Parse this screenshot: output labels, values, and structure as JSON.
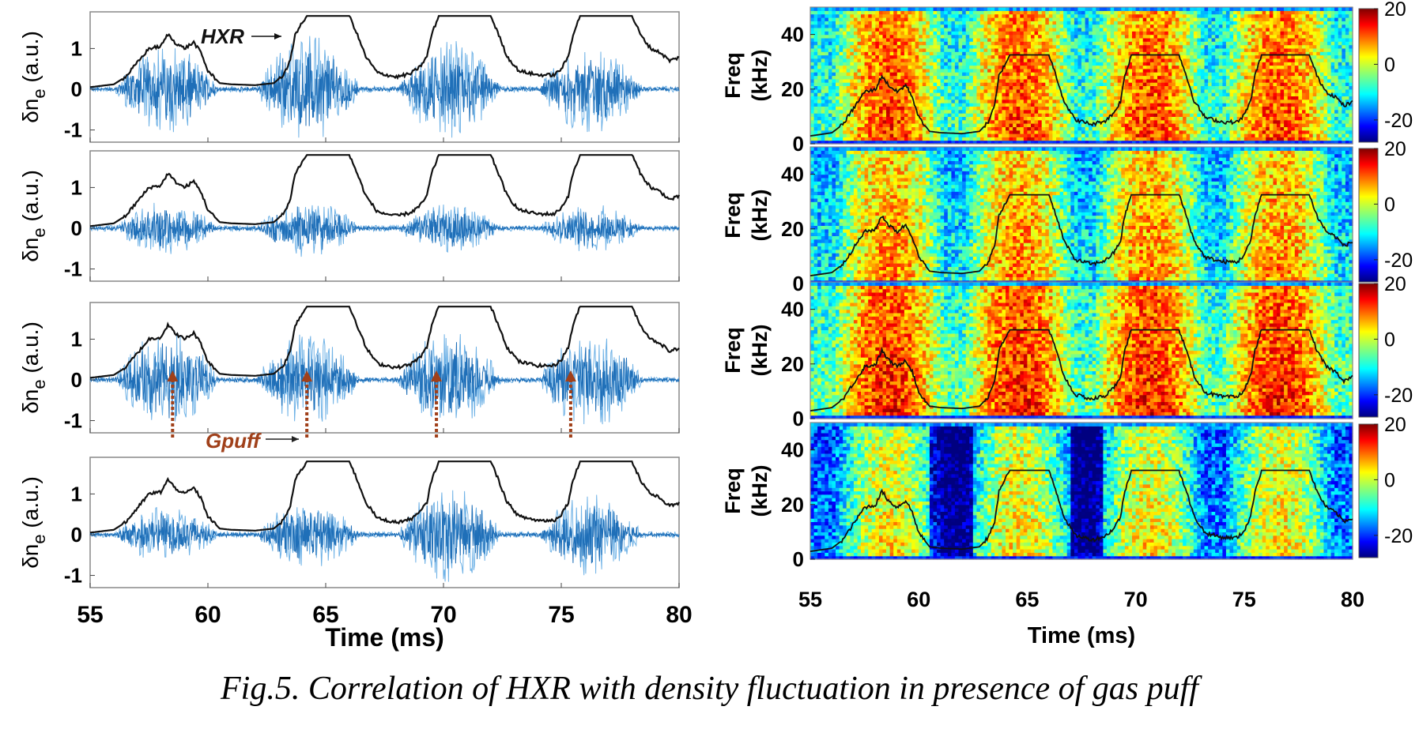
{
  "caption": "Fig.5. Correlation of HXR with density fluctuation in presence of gas puff",
  "colors": {
    "hxr": "#111111",
    "fluct_dark": "#1f6fb8",
    "fluct_light": "#6fb2e6",
    "gpuff_arrow": "#a0401a",
    "frame": "#888888"
  },
  "chart_data": [
    {
      "type": "line",
      "side": "left",
      "panels": 4,
      "ylabel": "δn_e (a.u.)",
      "ylabel_main": "δn",
      "ylabel_sub": "e",
      "ylabel_unit": " (a.u.)",
      "xlabel": "Time (ms)",
      "xlim": [
        55,
        80
      ],
      "ylim": [
        -1.3,
        1.9
      ],
      "xticks": [
        55,
        60,
        65,
        70,
        75,
        80
      ],
      "xtick_labels": [
        "55",
        "60",
        "65",
        "70",
        "75",
        "80"
      ],
      "yticks": [
        -1,
        0,
        1
      ],
      "ytick_labels": [
        "-1",
        "0",
        "1"
      ],
      "series": [
        {
          "name": "HXR",
          "x": [
            55,
            56,
            56.5,
            57,
            57.5,
            58,
            58.3,
            58.6,
            59,
            59.4,
            59.7,
            60,
            60.5,
            61,
            62,
            62.8,
            63.2,
            63.5,
            63.7,
            64.2,
            65,
            66,
            66.3,
            66.7,
            67.2,
            68,
            68.6,
            69,
            69.3,
            69.5,
            69.8,
            70.2,
            71,
            72,
            72.3,
            72.7,
            73.2,
            74,
            74.7,
            75,
            75.3,
            75.5,
            75.8,
            76.2,
            77,
            78,
            78.4,
            78.8,
            79.2,
            79.6,
            80
          ],
          "y": [
            0.05,
            0.12,
            0.3,
            0.65,
            1.0,
            1.05,
            1.35,
            1.15,
            1.0,
            1.15,
            0.9,
            0.45,
            0.15,
            0.12,
            0.1,
            0.15,
            0.35,
            0.7,
            1.35,
            1.8,
            1.8,
            1.8,
            1.4,
            0.8,
            0.4,
            0.3,
            0.38,
            0.55,
            0.8,
            1.35,
            1.8,
            1.8,
            1.8,
            1.8,
            1.4,
            0.8,
            0.45,
            0.35,
            0.35,
            0.5,
            0.8,
            1.35,
            1.8,
            1.8,
            1.8,
            1.8,
            1.3,
            1.0,
            0.9,
            0.7,
            0.78
          ]
        }
      ],
      "fluct_bursts": [
        {
          "x_from": 56.5,
          "x_to": 60.0,
          "amp": [
            0.9,
            0.55,
            1.0,
            0.6
          ]
        },
        {
          "x_from": 62.5,
          "x_to": 66.0,
          "amp": [
            1.1,
            0.6,
            0.95,
            0.7
          ]
        },
        {
          "x_from": 68.5,
          "x_to": 72.0,
          "amp": [
            1.0,
            0.5,
            1.05,
            1.0
          ]
        },
        {
          "x_from": 74.5,
          "x_to": 78.0,
          "amp": [
            0.9,
            0.5,
            1.0,
            0.85
          ]
        }
      ],
      "annotations": [
        {
          "text": "HXR",
          "panel": 0
        },
        {
          "text": "Gpuff",
          "panel": 2
        }
      ],
      "gpuff_times": [
        58.5,
        64.2,
        69.7,
        75.4
      ]
    },
    {
      "type": "heatmap",
      "side": "right",
      "panels": 4,
      "ylabel": "Freq (kHz)",
      "ylabel_line1": "Freq",
      "ylabel_line2": "(kHz)",
      "xlabel": "Time (ms)",
      "xlim": [
        55,
        80
      ],
      "ylim": [
        0,
        50
      ],
      "xticks": [
        55,
        60,
        65,
        70,
        75,
        80
      ],
      "xtick_labels": [
        "55",
        "60",
        "65",
        "70",
        "75",
        "80"
      ],
      "yticks": [
        0,
        20,
        40
      ],
      "ytick_labels": [
        "0",
        "20",
        "40"
      ],
      "colormap": "jet",
      "clim": [
        -28,
        20
      ],
      "colorbar_ticks": [
        20,
        0,
        -20
      ],
      "colorbar_tick_labels": [
        "20",
        "0",
        "-20"
      ],
      "overlay": "HXR"
    }
  ]
}
